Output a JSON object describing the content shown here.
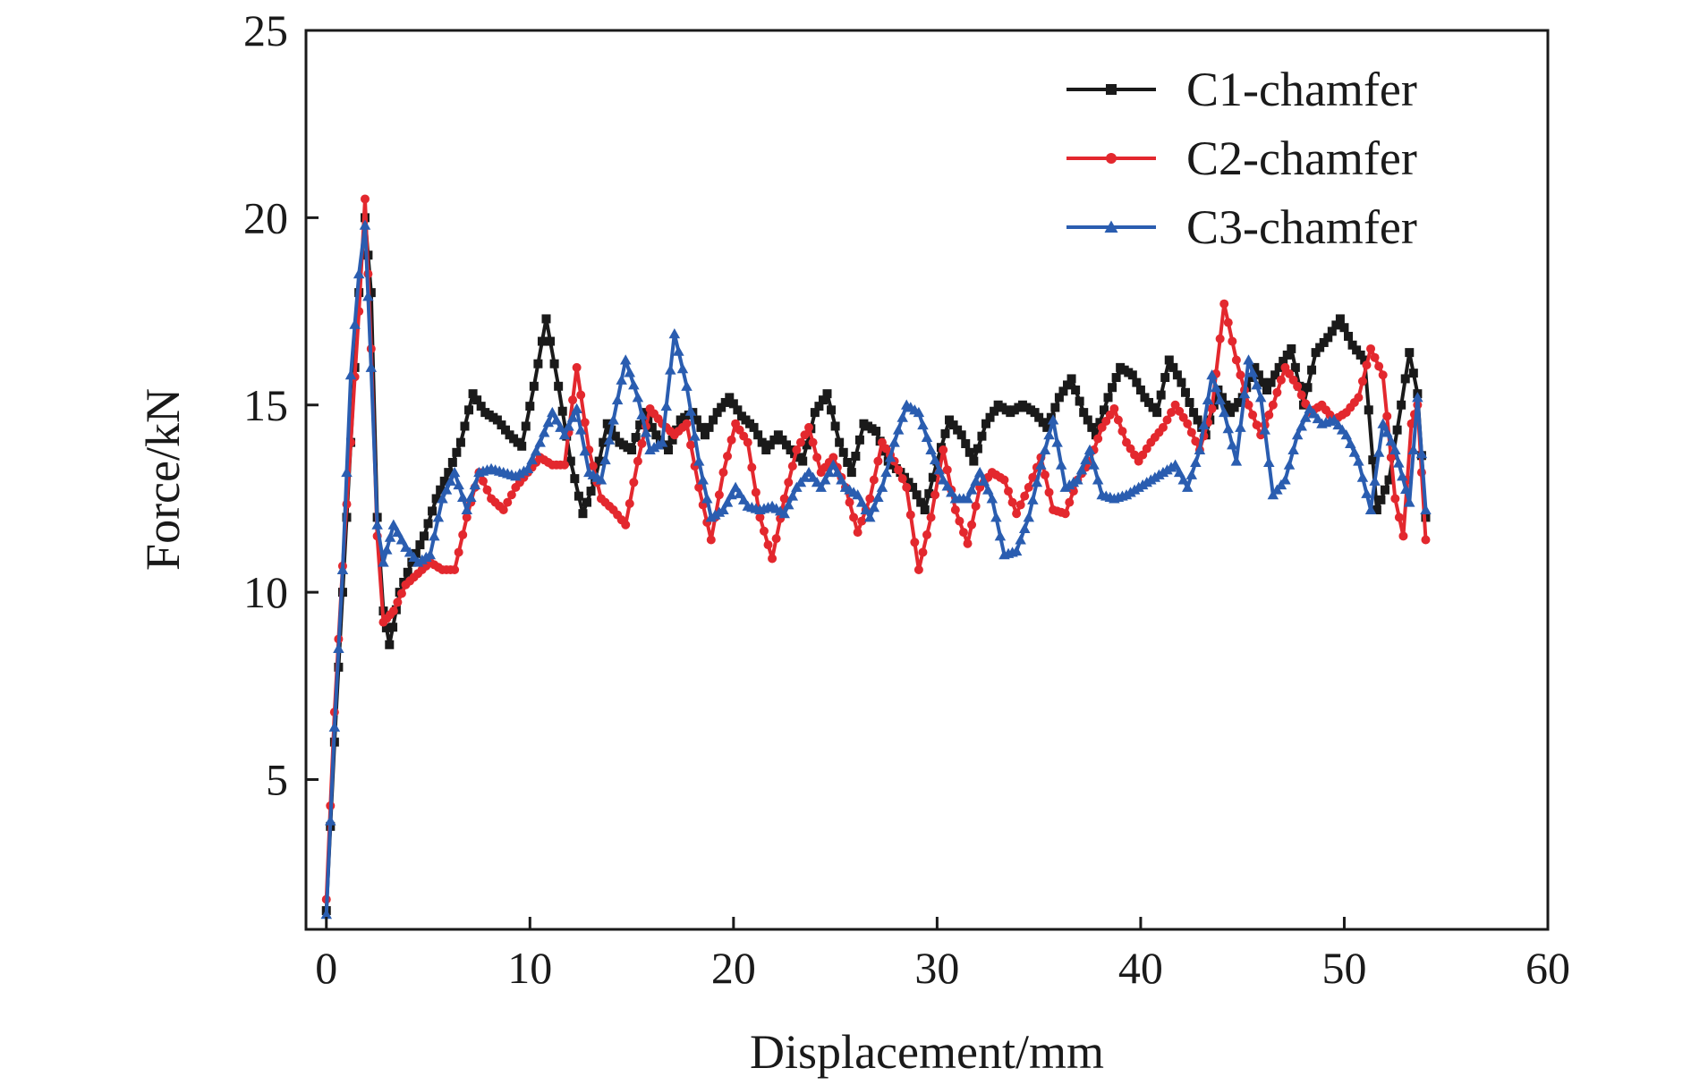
{
  "chart_data": {
    "type": "line",
    "xlabel": "Displacement/mm",
    "ylabel": "Force/kN",
    "xlim": [
      -1,
      60
    ],
    "ylim": [
      1,
      25
    ],
    "xticks": [
      0,
      10,
      20,
      30,
      40,
      50,
      60
    ],
    "yticks": [
      5,
      10,
      15,
      20,
      25
    ],
    "legend_position": "top-right",
    "grid": false,
    "series": [
      {
        "name": "C1-chamfer",
        "color": "#1a1a1a",
        "marker": "square",
        "points": [
          [
            0,
            1.5
          ],
          [
            0.4,
            6
          ],
          [
            0.8,
            10
          ],
          [
            1.2,
            14
          ],
          [
            1.6,
            18
          ],
          [
            1.9,
            20
          ],
          [
            2.2,
            18
          ],
          [
            2.5,
            12
          ],
          [
            2.8,
            9.5
          ],
          [
            3.1,
            8.6
          ],
          [
            3.6,
            10
          ],
          [
            4.2,
            10.8
          ],
          [
            4.8,
            11.5
          ],
          [
            5.4,
            12.5
          ],
          [
            6,
            13.2
          ],
          [
            6.6,
            14
          ],
          [
            7.2,
            15.3
          ],
          [
            7.8,
            14.8
          ],
          [
            8.4,
            14.6
          ],
          [
            9,
            14.2
          ],
          [
            9.6,
            13.9
          ],
          [
            10.2,
            15.5
          ],
          [
            10.8,
            17.3
          ],
          [
            11.4,
            15.5
          ],
          [
            12,
            13.5
          ],
          [
            12.6,
            12.1
          ],
          [
            13.2,
            13
          ],
          [
            13.8,
            14.5
          ],
          [
            14.4,
            14
          ],
          [
            15,
            13.8
          ],
          [
            15.6,
            14.8
          ],
          [
            16.2,
            14.2
          ],
          [
            16.8,
            13.8
          ],
          [
            17.4,
            14.6
          ],
          [
            18,
            14.8
          ],
          [
            18.6,
            14.2
          ],
          [
            19.2,
            14.8
          ],
          [
            19.8,
            15.2
          ],
          [
            20.4,
            14.7
          ],
          [
            21,
            14.4
          ],
          [
            21.6,
            13.8
          ],
          [
            22.2,
            14.2
          ],
          [
            22.8,
            13.8
          ],
          [
            23.4,
            13.5
          ],
          [
            24,
            14.8
          ],
          [
            24.6,
            15.3
          ],
          [
            25.2,
            14
          ],
          [
            25.8,
            13.2
          ],
          [
            26.4,
            14.5
          ],
          [
            27,
            14.3
          ],
          [
            27.6,
            13.5
          ],
          [
            28.2,
            13.2
          ],
          [
            28.8,
            12.8
          ],
          [
            29.4,
            12.2
          ],
          [
            30,
            13.5
          ],
          [
            30.6,
            14.6
          ],
          [
            31.2,
            14.2
          ],
          [
            31.8,
            13.5
          ],
          [
            32.4,
            14.5
          ],
          [
            33,
            15
          ],
          [
            33.6,
            14.8
          ],
          [
            34.2,
            15
          ],
          [
            34.8,
            14.8
          ],
          [
            35.4,
            14.4
          ],
          [
            36,
            15.2
          ],
          [
            36.6,
            15.7
          ],
          [
            37.2,
            14.8
          ],
          [
            37.8,
            14.2
          ],
          [
            38.4,
            15.2
          ],
          [
            39,
            16
          ],
          [
            39.6,
            15.8
          ],
          [
            40.2,
            15.2
          ],
          [
            40.8,
            14.8
          ],
          [
            41.4,
            16.2
          ],
          [
            42,
            15.6
          ],
          [
            42.6,
            14.8
          ],
          [
            43.2,
            14.2
          ],
          [
            43.8,
            15.4
          ],
          [
            44.4,
            14.8
          ],
          [
            45,
            15.2
          ],
          [
            45.6,
            16
          ],
          [
            46.2,
            15.4
          ],
          [
            46.8,
            16
          ],
          [
            47.4,
            16.5
          ],
          [
            48,
            15
          ],
          [
            48.6,
            16.4
          ],
          [
            49.2,
            16.8
          ],
          [
            49.8,
            17.3
          ],
          [
            50.4,
            16.6
          ],
          [
            51,
            16.2
          ],
          [
            51.6,
            12.2
          ],
          [
            52.2,
            13
          ],
          [
            52.8,
            15
          ],
          [
            53.2,
            16.4
          ],
          [
            53.6,
            15.3
          ],
          [
            54,
            12
          ]
        ]
      },
      {
        "name": "C2-chamfer",
        "color": "#e3282e",
        "marker": "circle",
        "points": [
          [
            0,
            1.8
          ],
          [
            0.4,
            6.8
          ],
          [
            0.8,
            10.7
          ],
          [
            1.2,
            14
          ],
          [
            1.6,
            17.5
          ],
          [
            1.9,
            20.5
          ],
          [
            2.2,
            16.5
          ],
          [
            2.5,
            11.5
          ],
          [
            2.8,
            9.2
          ],
          [
            3.3,
            9.5
          ],
          [
            3.9,
            10.2
          ],
          [
            4.5,
            10.5
          ],
          [
            5.1,
            10.8
          ],
          [
            5.7,
            10.6
          ],
          [
            6.3,
            10.6
          ],
          [
            6.9,
            12
          ],
          [
            7.5,
            13.2
          ],
          [
            8.1,
            12.5
          ],
          [
            8.7,
            12.2
          ],
          [
            9.3,
            12.8
          ],
          [
            9.9,
            13.2
          ],
          [
            10.5,
            13.6
          ],
          [
            11.1,
            13.4
          ],
          [
            11.7,
            13.4
          ],
          [
            12.3,
            16
          ],
          [
            12.9,
            13.8
          ],
          [
            13.5,
            12.5
          ],
          [
            14.1,
            12.2
          ],
          [
            14.7,
            11.8
          ],
          [
            15.3,
            13.5
          ],
          [
            15.9,
            14.9
          ],
          [
            16.5,
            14.5
          ],
          [
            17.1,
            14.2
          ],
          [
            17.7,
            14.5
          ],
          [
            18.3,
            12.8
          ],
          [
            18.9,
            11.4
          ],
          [
            19.5,
            13.2
          ],
          [
            20.1,
            14.5
          ],
          [
            20.7,
            14
          ],
          [
            21.3,
            12
          ],
          [
            21.9,
            10.9
          ],
          [
            22.5,
            12.5
          ],
          [
            23.1,
            13.8
          ],
          [
            23.7,
            14.4
          ],
          [
            24.3,
            13.2
          ],
          [
            24.9,
            13.6
          ],
          [
            25.5,
            12.8
          ],
          [
            26.1,
            11.6
          ],
          [
            26.7,
            12.5
          ],
          [
            27.3,
            14
          ],
          [
            27.9,
            13.5
          ],
          [
            28.5,
            12.8
          ],
          [
            29.1,
            10.6
          ],
          [
            29.7,
            12
          ],
          [
            30.3,
            13.8
          ],
          [
            30.9,
            12.2
          ],
          [
            31.5,
            11.3
          ],
          [
            32.1,
            12.8
          ],
          [
            32.7,
            13.2
          ],
          [
            33.3,
            13
          ],
          [
            33.9,
            12.1
          ],
          [
            34.5,
            12.8
          ],
          [
            35.1,
            13.6
          ],
          [
            35.7,
            12.2
          ],
          [
            36.3,
            12.1
          ],
          [
            36.9,
            13
          ],
          [
            37.5,
            13.5
          ],
          [
            38.1,
            14.4
          ],
          [
            38.7,
            14.9
          ],
          [
            39.3,
            14
          ],
          [
            39.9,
            13.5
          ],
          [
            40.5,
            14
          ],
          [
            41.1,
            14.4
          ],
          [
            41.7,
            15
          ],
          [
            42.3,
            14.5
          ],
          [
            42.9,
            13.8
          ],
          [
            43.5,
            14.9
          ],
          [
            44.1,
            17.7
          ],
          [
            44.7,
            16.2
          ],
          [
            45.3,
            15
          ],
          [
            45.9,
            14.2
          ],
          [
            46.5,
            15
          ],
          [
            47.1,
            16
          ],
          [
            47.7,
            15.5
          ],
          [
            48.3,
            14.8
          ],
          [
            48.9,
            15
          ],
          [
            49.5,
            14.6
          ],
          [
            50.1,
            14.8
          ],
          [
            50.7,
            15.2
          ],
          [
            51.3,
            16.5
          ],
          [
            51.9,
            15.8
          ],
          [
            52.5,
            12.5
          ],
          [
            52.9,
            11.5
          ],
          [
            53.3,
            14.5
          ],
          [
            53.6,
            15
          ],
          [
            54,
            11.4
          ]
        ]
      },
      {
        "name": "C3-chamfer",
        "color": "#2a5db0",
        "marker": "triangle",
        "points": [
          [
            0,
            1.4
          ],
          [
            0.4,
            6.4
          ],
          [
            0.8,
            10.6
          ],
          [
            1.2,
            15.8
          ],
          [
            1.6,
            18.5
          ],
          [
            1.9,
            19.8
          ],
          [
            2.2,
            16
          ],
          [
            2.5,
            11.8
          ],
          [
            2.8,
            10.8
          ],
          [
            3.3,
            11.8
          ],
          [
            3.9,
            11.2
          ],
          [
            4.5,
            10.8
          ],
          [
            5.1,
            11
          ],
          [
            5.7,
            12.5
          ],
          [
            6.3,
            13.2
          ],
          [
            6.9,
            12.2
          ],
          [
            7.5,
            13.2
          ],
          [
            8.1,
            13.3
          ],
          [
            8.7,
            13.2
          ],
          [
            9.3,
            13.1
          ],
          [
            9.9,
            13.3
          ],
          [
            10.5,
            14
          ],
          [
            11.1,
            14.8
          ],
          [
            11.7,
            14.2
          ],
          [
            12.3,
            14.9
          ],
          [
            12.9,
            13.2
          ],
          [
            13.5,
            13
          ],
          [
            14.1,
            14.6
          ],
          [
            14.7,
            16.2
          ],
          [
            15.3,
            15.2
          ],
          [
            15.9,
            13.8
          ],
          [
            16.5,
            14
          ],
          [
            17.1,
            16.9
          ],
          [
            17.7,
            15.5
          ],
          [
            18.3,
            13.5
          ],
          [
            18.9,
            12
          ],
          [
            19.5,
            12.2
          ],
          [
            20.1,
            12.8
          ],
          [
            20.7,
            12.3
          ],
          [
            21.3,
            12.2
          ],
          [
            21.9,
            12.3
          ],
          [
            22.5,
            12.1
          ],
          [
            23.1,
            12.8
          ],
          [
            23.7,
            13.2
          ],
          [
            24.3,
            12.8
          ],
          [
            24.9,
            13.4
          ],
          [
            25.5,
            12.8
          ],
          [
            26.1,
            12.6
          ],
          [
            26.7,
            12
          ],
          [
            27.3,
            12.8
          ],
          [
            27.9,
            14
          ],
          [
            28.5,
            15
          ],
          [
            29.1,
            14.8
          ],
          [
            29.7,
            13.8
          ],
          [
            30.3,
            13
          ],
          [
            30.9,
            12.5
          ],
          [
            31.5,
            12.5
          ],
          [
            32.1,
            13.2
          ],
          [
            32.7,
            12.5
          ],
          [
            33.3,
            11
          ],
          [
            33.9,
            11.1
          ],
          [
            34.5,
            12
          ],
          [
            35.1,
            13.4
          ],
          [
            35.7,
            14.6
          ],
          [
            36.3,
            12.8
          ],
          [
            36.9,
            13
          ],
          [
            37.5,
            13.8
          ],
          [
            38.1,
            12.6
          ],
          [
            38.7,
            12.5
          ],
          [
            39.3,
            12.6
          ],
          [
            39.9,
            12.8
          ],
          [
            40.5,
            13
          ],
          [
            41.1,
            13.2
          ],
          [
            41.7,
            13.4
          ],
          [
            42.3,
            12.8
          ],
          [
            42.9,
            13.8
          ],
          [
            43.5,
            15.8
          ],
          [
            44.1,
            14.8
          ],
          [
            44.7,
            13.5
          ],
          [
            45.3,
            16.2
          ],
          [
            45.9,
            15.2
          ],
          [
            46.5,
            12.6
          ],
          [
            47.1,
            13
          ],
          [
            47.7,
            14.2
          ],
          [
            48.3,
            14.9
          ],
          [
            48.9,
            14.5
          ],
          [
            49.5,
            14.6
          ],
          [
            50.1,
            14.2
          ],
          [
            50.7,
            13.5
          ],
          [
            51.3,
            12.2
          ],
          [
            51.9,
            14.5
          ],
          [
            52.5,
            13.8
          ],
          [
            53.2,
            12.4
          ],
          [
            53.6,
            15.2
          ],
          [
            54,
            12.2
          ]
        ]
      }
    ]
  }
}
